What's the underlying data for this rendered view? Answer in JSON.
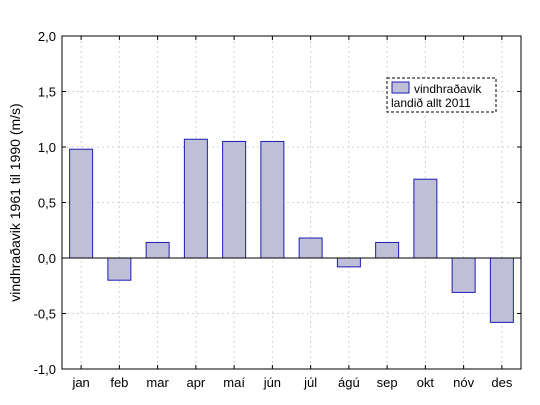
{
  "chart_data": {
    "type": "bar",
    "categories": [
      "jan",
      "feb",
      "mar",
      "apr",
      "maí",
      "jún",
      "júl",
      "ágú",
      "sep",
      "okt",
      "nóv",
      "des"
    ],
    "series": [
      {
        "name": "vindhraðavik landið allt 2011",
        "values": [
          0.98,
          -0.2,
          0.14,
          1.07,
          1.05,
          1.05,
          0.18,
          -0.08,
          0.14,
          0.71,
          -0.31,
          -0.58
        ]
      }
    ],
    "ylabel": "vindhraðavik 1961 til 1990 (m/s)",
    "xlabel": "",
    "ylim": [
      -1.0,
      2.0
    ],
    "yticks": [
      "-1,0",
      "-0,5",
      "0,0",
      "0,5",
      "1,0",
      "1,5",
      "2,0"
    ],
    "legend": {
      "lines": [
        "vindhraðavik",
        "landið allt 2011"
      ],
      "position": "top-right"
    },
    "grid": true,
    "colors": {
      "bar_fill": "#bfc0d8",
      "bar_stroke": "#1c1cb4",
      "grid": "#d4d4d4",
      "zero_line": "#000000"
    }
  }
}
